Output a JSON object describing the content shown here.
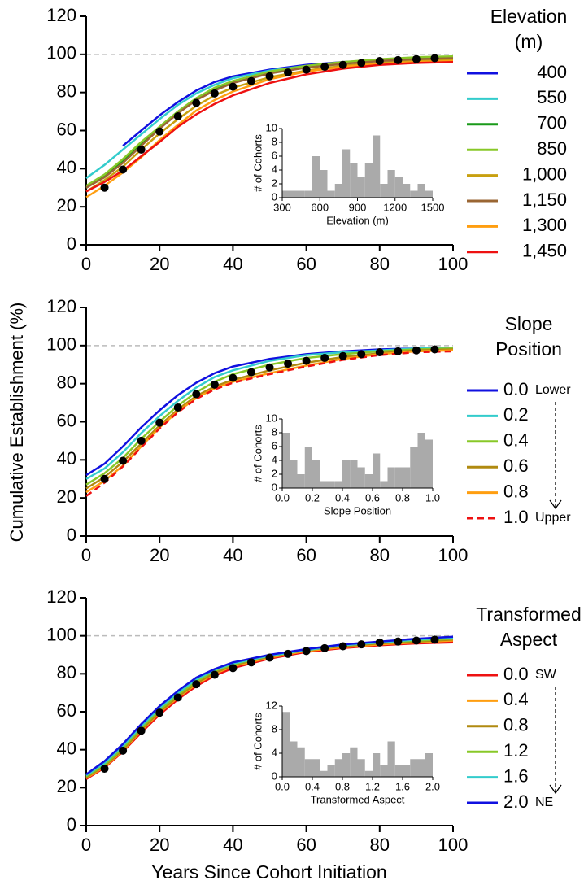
{
  "chart_data": [
    {
      "type": "line",
      "xlim": [
        0,
        100
      ],
      "xticks": [
        0,
        20,
        40,
        60,
        80,
        100
      ],
      "ylim": [
        0,
        120
      ],
      "yticks": [
        0,
        20,
        40,
        60,
        80,
        100,
        120
      ],
      "reference_line": 100,
      "legend_title": [
        "Elevation",
        "(m)"
      ],
      "x": [
        0,
        5,
        10,
        15,
        20,
        25,
        30,
        35,
        40,
        50,
        60,
        70,
        80,
        90,
        100
      ],
      "series": [
        {
          "name": "400",
          "color": "#1010e0",
          "values": [
            null,
            null,
            52,
            60,
            68,
            75,
            81,
            85.5,
            88.5,
            92,
            94.5,
            96,
            97,
            97.5,
            98
          ]
        },
        {
          "name": "550",
          "color": "#33cccc",
          "values": [
            35,
            42,
            50,
            58,
            66,
            73.5,
            79.5,
            84,
            87.5,
            91.5,
            94,
            95.5,
            97,
            98,
            98.5
          ]
        },
        {
          "name": "700",
          "color": "#1a9a1a",
          "values": [
            30,
            36,
            44,
            53,
            62,
            70,
            77,
            82,
            86,
            90.5,
            93.5,
            95.5,
            97,
            98,
            98.5
          ]
        },
        {
          "name": "850",
          "color": "#88c828",
          "values": [
            31,
            37,
            45,
            54,
            62,
            70,
            77,
            82.5,
            86,
            91,
            94,
            96,
            97.5,
            98.5,
            99
          ]
        },
        {
          "name": "1,000",
          "color": "#c8a010",
          "values": [
            28,
            34,
            41,
            50,
            58.5,
            66,
            73,
            78.5,
            82.5,
            88,
            91.5,
            94,
            95.5,
            96.5,
            97
          ]
        },
        {
          "name": "1,150",
          "color": "#9a6633",
          "values": [
            30,
            35.5,
            43,
            52,
            61,
            69,
            76,
            81,
            85,
            90,
            93,
            95,
            96.5,
            97.5,
            98
          ]
        },
        {
          "name": "1,300",
          "color": "#ff9e10",
          "values": [
            25,
            31,
            38,
            46,
            55,
            63,
            70.5,
            76,
            80.5,
            87,
            91,
            93.5,
            95,
            96,
            96.5
          ]
        },
        {
          "name": "1,450",
          "color": "#ee1111",
          "values": [
            28,
            33,
            39,
            46.5,
            54,
            62,
            68.5,
            74,
            78.5,
            85,
            89.5,
            92.5,
            94.5,
            95.5,
            96
          ]
        }
      ],
      "observed": {
        "color": "#000000",
        "x": [
          5,
          10,
          15,
          20,
          25,
          30,
          35,
          40,
          45,
          50,
          55,
          60,
          65,
          70,
          75,
          80,
          85,
          90,
          95
        ],
        "values": [
          30,
          39.5,
          50,
          59.5,
          67.5,
          74.5,
          79.5,
          83,
          86,
          88.5,
          90.5,
          92,
          93.5,
          94.5,
          95.5,
          96.5,
          97,
          97.5,
          98
        ]
      }
    },
    {
      "type": "histogram",
      "xlabel": "Elevation (m)",
      "ylabel": "# of Cohorts",
      "color": "#aaaaaa",
      "bins": [
        300,
        360,
        420,
        480,
        540,
        600,
        660,
        720,
        780,
        840,
        900,
        960,
        1020,
        1080,
        1140,
        1200,
        1260,
        1320,
        1380,
        1440,
        1500
      ],
      "values": [
        1,
        1,
        1,
        1,
        6,
        4,
        1,
        2,
        7,
        5,
        3,
        5,
        9,
        2,
        4,
        3,
        2,
        1,
        2,
        1
      ],
      "xlim": [
        300,
        1500
      ],
      "xticks": [
        300,
        600,
        900,
        1200,
        1500
      ],
      "ylim": [
        0,
        10
      ],
      "yticks": [
        0,
        2,
        4,
        6,
        8,
        10
      ]
    },
    {
      "type": "line",
      "xlim": [
        0,
        100
      ],
      "xticks": [
        0,
        20,
        40,
        60,
        80,
        100
      ],
      "ylim": [
        0,
        120
      ],
      "yticks": [
        0,
        20,
        40,
        60,
        80,
        100,
        120
      ],
      "reference_line": 100,
      "ylabel": "Cumulative Establishment (%)",
      "legend_title": [
        "Slope",
        "Position"
      ],
      "legend_annotations": [
        "Lower",
        "Upper"
      ],
      "x": [
        0,
        5,
        10,
        15,
        20,
        25,
        30,
        35,
        40,
        50,
        60,
        70,
        80,
        90,
        100
      ],
      "series": [
        {
          "name": "0.0",
          "color": "#1010e0",
          "values": [
            32,
            38,
            47,
            57,
            66,
            74,
            80.5,
            85.5,
            89,
            93,
            95.5,
            97,
            98,
            98.5,
            99
          ]
        },
        {
          "name": "0.2",
          "color": "#33cccc",
          "values": [
            30,
            35.5,
            44,
            54,
            63,
            71,
            78,
            83.5,
            87,
            92,
            95,
            96.5,
            97.5,
            98.5,
            99
          ]
        },
        {
          "name": "0.4",
          "color": "#88c828",
          "values": [
            27,
            33,
            41,
            51,
            60,
            68.5,
            75.5,
            81,
            85,
            90,
            93.5,
            95.5,
            97,
            98,
            98.5
          ]
        },
        {
          "name": "0.6",
          "color": "#b08a10",
          "values": [
            25,
            31,
            39,
            48.5,
            58,
            66.5,
            73.5,
            78.5,
            82,
            87,
            91,
            94,
            96,
            97.5,
            98
          ]
        },
        {
          "name": "0.8",
          "color": "#ff9e10",
          "values": [
            23,
            29,
            37,
            47,
            57,
            65.5,
            72.5,
            77.5,
            81,
            85.5,
            89.5,
            93,
            95.5,
            97,
            97.5
          ]
        },
        {
          "name": "1.0",
          "color": "#ee1111",
          "dashed": true,
          "values": [
            21,
            28,
            36.5,
            46.5,
            56.5,
            65,
            72,
            77,
            80.5,
            85,
            89,
            92.5,
            95,
            96.5,
            97
          ]
        }
      ],
      "observed": {
        "color": "#000000",
        "x": [
          5,
          10,
          15,
          20,
          25,
          30,
          35,
          40,
          45,
          50,
          55,
          60,
          65,
          70,
          75,
          80,
          85,
          90,
          95
        ],
        "values": [
          30,
          39.5,
          50,
          59.5,
          67.5,
          74.5,
          79.5,
          83,
          86,
          88.5,
          90.5,
          92,
          93.5,
          94.5,
          95.5,
          96.5,
          97,
          97.5,
          98
        ]
      }
    },
    {
      "type": "histogram",
      "xlabel": "Slope Position",
      "ylabel": "# of Cohorts",
      "color": "#aaaaaa",
      "bins": [
        0,
        0.05,
        0.1,
        0.15,
        0.2,
        0.25,
        0.3,
        0.35,
        0.4,
        0.45,
        0.5,
        0.55,
        0.6,
        0.65,
        0.7,
        0.75,
        0.8,
        0.85,
        0.9,
        0.95,
        1.0
      ],
      "values": [
        8,
        4,
        2,
        6,
        4,
        1,
        1,
        1,
        4,
        4,
        3,
        2,
        5,
        1,
        3,
        3,
        3,
        6,
        8,
        7
      ],
      "xlim": [
        0,
        1
      ],
      "xticks": [
        {
          "value": 0,
          "label": "0.0"
        },
        0.2,
        0.4,
        0.6,
        0.8,
        {
          "value": 1,
          "label": "1.0"
        }
      ],
      "ylim": [
        0,
        10
      ],
      "yticks": [
        0,
        2,
        4,
        6,
        8,
        10
      ]
    },
    {
      "type": "line",
      "xlim": [
        0,
        100
      ],
      "xticks": [
        0,
        20,
        40,
        60,
        80,
        100
      ],
      "ylim": [
        0,
        120
      ],
      "yticks": [
        0,
        20,
        40,
        60,
        80,
        100,
        120
      ],
      "reference_line": 100,
      "xlabel": "Years Since Cohort Initiation",
      "legend_title": [
        "Transformed",
        "Aspect"
      ],
      "legend_annotations": [
        "SW",
        "NE"
      ],
      "x": [
        0,
        5,
        10,
        15,
        20,
        25,
        30,
        35,
        40,
        50,
        60,
        70,
        80,
        90,
        100
      ],
      "series": [
        {
          "name": "0.0",
          "color": "#ee1111",
          "values": [
            24.5,
            30.5,
            39,
            49,
            58.5,
            66.5,
            73.5,
            79,
            83,
            88,
            91.5,
            93.5,
            95,
            96,
            96.5
          ]
        },
        {
          "name": "0.4",
          "color": "#ff9e10",
          "values": [
            25,
            31,
            39.5,
            50,
            59.5,
            67.5,
            74.5,
            80,
            84,
            88.5,
            92,
            94,
            95.5,
            96.5,
            97.5
          ]
        },
        {
          "name": "0.8",
          "color": "#b08a10",
          "values": [
            25.5,
            31.5,
            40,
            50.5,
            60,
            68,
            75,
            80.5,
            84.5,
            89,
            92.5,
            94.5,
            96,
            97,
            98
          ]
        },
        {
          "name": "1.2",
          "color": "#88c828",
          "values": [
            26,
            32,
            41,
            51.5,
            61,
            69,
            76,
            81.5,
            85,
            89.5,
            92.5,
            95,
            96.5,
            97.5,
            98.5
          ]
        },
        {
          "name": "1.6",
          "color": "#33cccc",
          "values": [
            26.5,
            33,
            42,
            52.5,
            62,
            70,
            77,
            82,
            85.5,
            89.5,
            92.5,
            95,
            96.5,
            98,
            99
          ]
        },
        {
          "name": "2.0",
          "color": "#1010e0",
          "values": [
            27,
            34,
            43,
            53.5,
            63,
            71,
            78,
            82.5,
            86,
            90,
            93,
            95.5,
            97,
            98.5,
            99.5
          ]
        }
      ],
      "observed": {
        "color": "#000000",
        "x": [
          5,
          10,
          15,
          20,
          25,
          30,
          35,
          40,
          45,
          50,
          55,
          60,
          65,
          70,
          75,
          80,
          85,
          90,
          95
        ],
        "values": [
          30,
          39.5,
          50,
          59.5,
          67.5,
          74.5,
          79.5,
          83,
          86,
          88.5,
          90.5,
          92,
          93.5,
          94.5,
          95.5,
          96.5,
          97,
          97.5,
          98
        ]
      }
    },
    {
      "type": "histogram",
      "xlabel": "Transformed Aspect",
      "ylabel": "# of Cohorts",
      "color": "#aaaaaa",
      "bins": [
        0,
        0.1,
        0.2,
        0.3,
        0.4,
        0.5,
        0.6,
        0.7,
        0.8,
        0.9,
        1.0,
        1.1,
        1.2,
        1.3,
        1.4,
        1.5,
        1.6,
        1.7,
        1.8,
        1.9,
        2.0
      ],
      "values": [
        11,
        6,
        5,
        3,
        3,
        1,
        2,
        3,
        4,
        5,
        3,
        1,
        4,
        2,
        6,
        2,
        2,
        3,
        3,
        4
      ],
      "xlim": [
        0,
        2
      ],
      "xticks": [
        {
          "value": 0,
          "label": "0.0"
        },
        0.4,
        0.8,
        1.2,
        1.6,
        {
          "value": 2,
          "label": "2.0"
        }
      ],
      "ylim": [
        0,
        12
      ],
      "yticks": [
        0,
        4,
        8,
        12
      ]
    }
  ]
}
